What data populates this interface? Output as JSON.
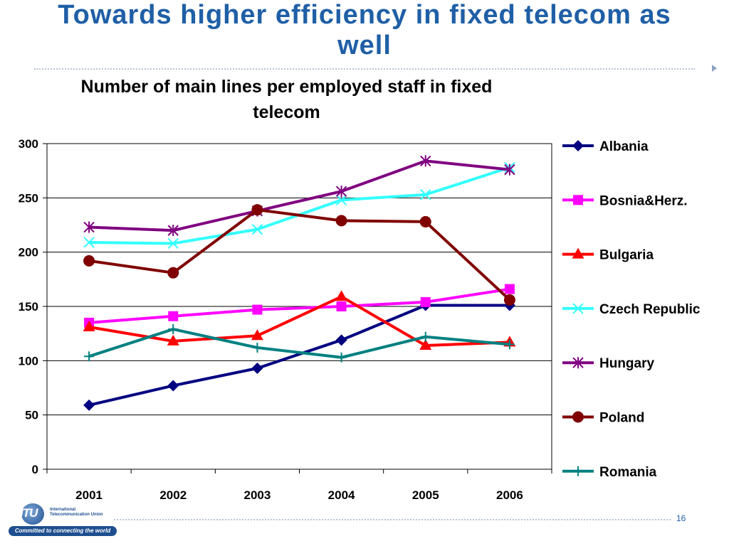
{
  "slide": {
    "title": "Towards higher efficiency in fixed telecom as well",
    "page_number": "16"
  },
  "logo": {
    "abbr": "ITU",
    "org_name": "International Telecommunication Union",
    "tagline": "Committed to connecting the world"
  },
  "chart_data": {
    "type": "line",
    "title": "Number of main lines per employed staff in fixed telecom",
    "xlabel": "",
    "ylabel": "",
    "categories": [
      "2001",
      "2002",
      "2003",
      "2004",
      "2005",
      "2006"
    ],
    "ylim": [
      0,
      300
    ],
    "yticks": [
      0,
      50,
      100,
      150,
      200,
      250,
      300
    ],
    "grid": true,
    "legend": "right",
    "series": [
      {
        "name": "Albania",
        "color": "#000080",
        "marker": "diamond",
        "values": [
          59,
          77,
          93,
          119,
          151,
          151
        ]
      },
      {
        "name": "Bosnia&Herz.",
        "color": "#ff00ff",
        "marker": "square",
        "values": [
          135,
          141,
          147,
          150,
          154,
          166
        ]
      },
      {
        "name": "Bulgaria",
        "color": "#ff0000",
        "marker": "triangle",
        "values": [
          131,
          118,
          123,
          159,
          114,
          117
        ]
      },
      {
        "name": "Czech Republic",
        "color": "#33ffff",
        "marker": "x",
        "values": [
          209,
          208,
          221,
          248,
          253,
          278
        ]
      },
      {
        "name": "Hungary",
        "color": "#800080",
        "marker": "asterisk",
        "values": [
          223,
          220,
          238,
          256,
          284,
          276
        ]
      },
      {
        "name": "Poland",
        "color": "#800000",
        "marker": "circle",
        "values": [
          192,
          181,
          239,
          229,
          228,
          156
        ]
      },
      {
        "name": "Romania",
        "color": "#008080",
        "marker": "plus",
        "values": [
          104,
          129,
          112,
          103,
          122,
          115
        ]
      }
    ]
  }
}
